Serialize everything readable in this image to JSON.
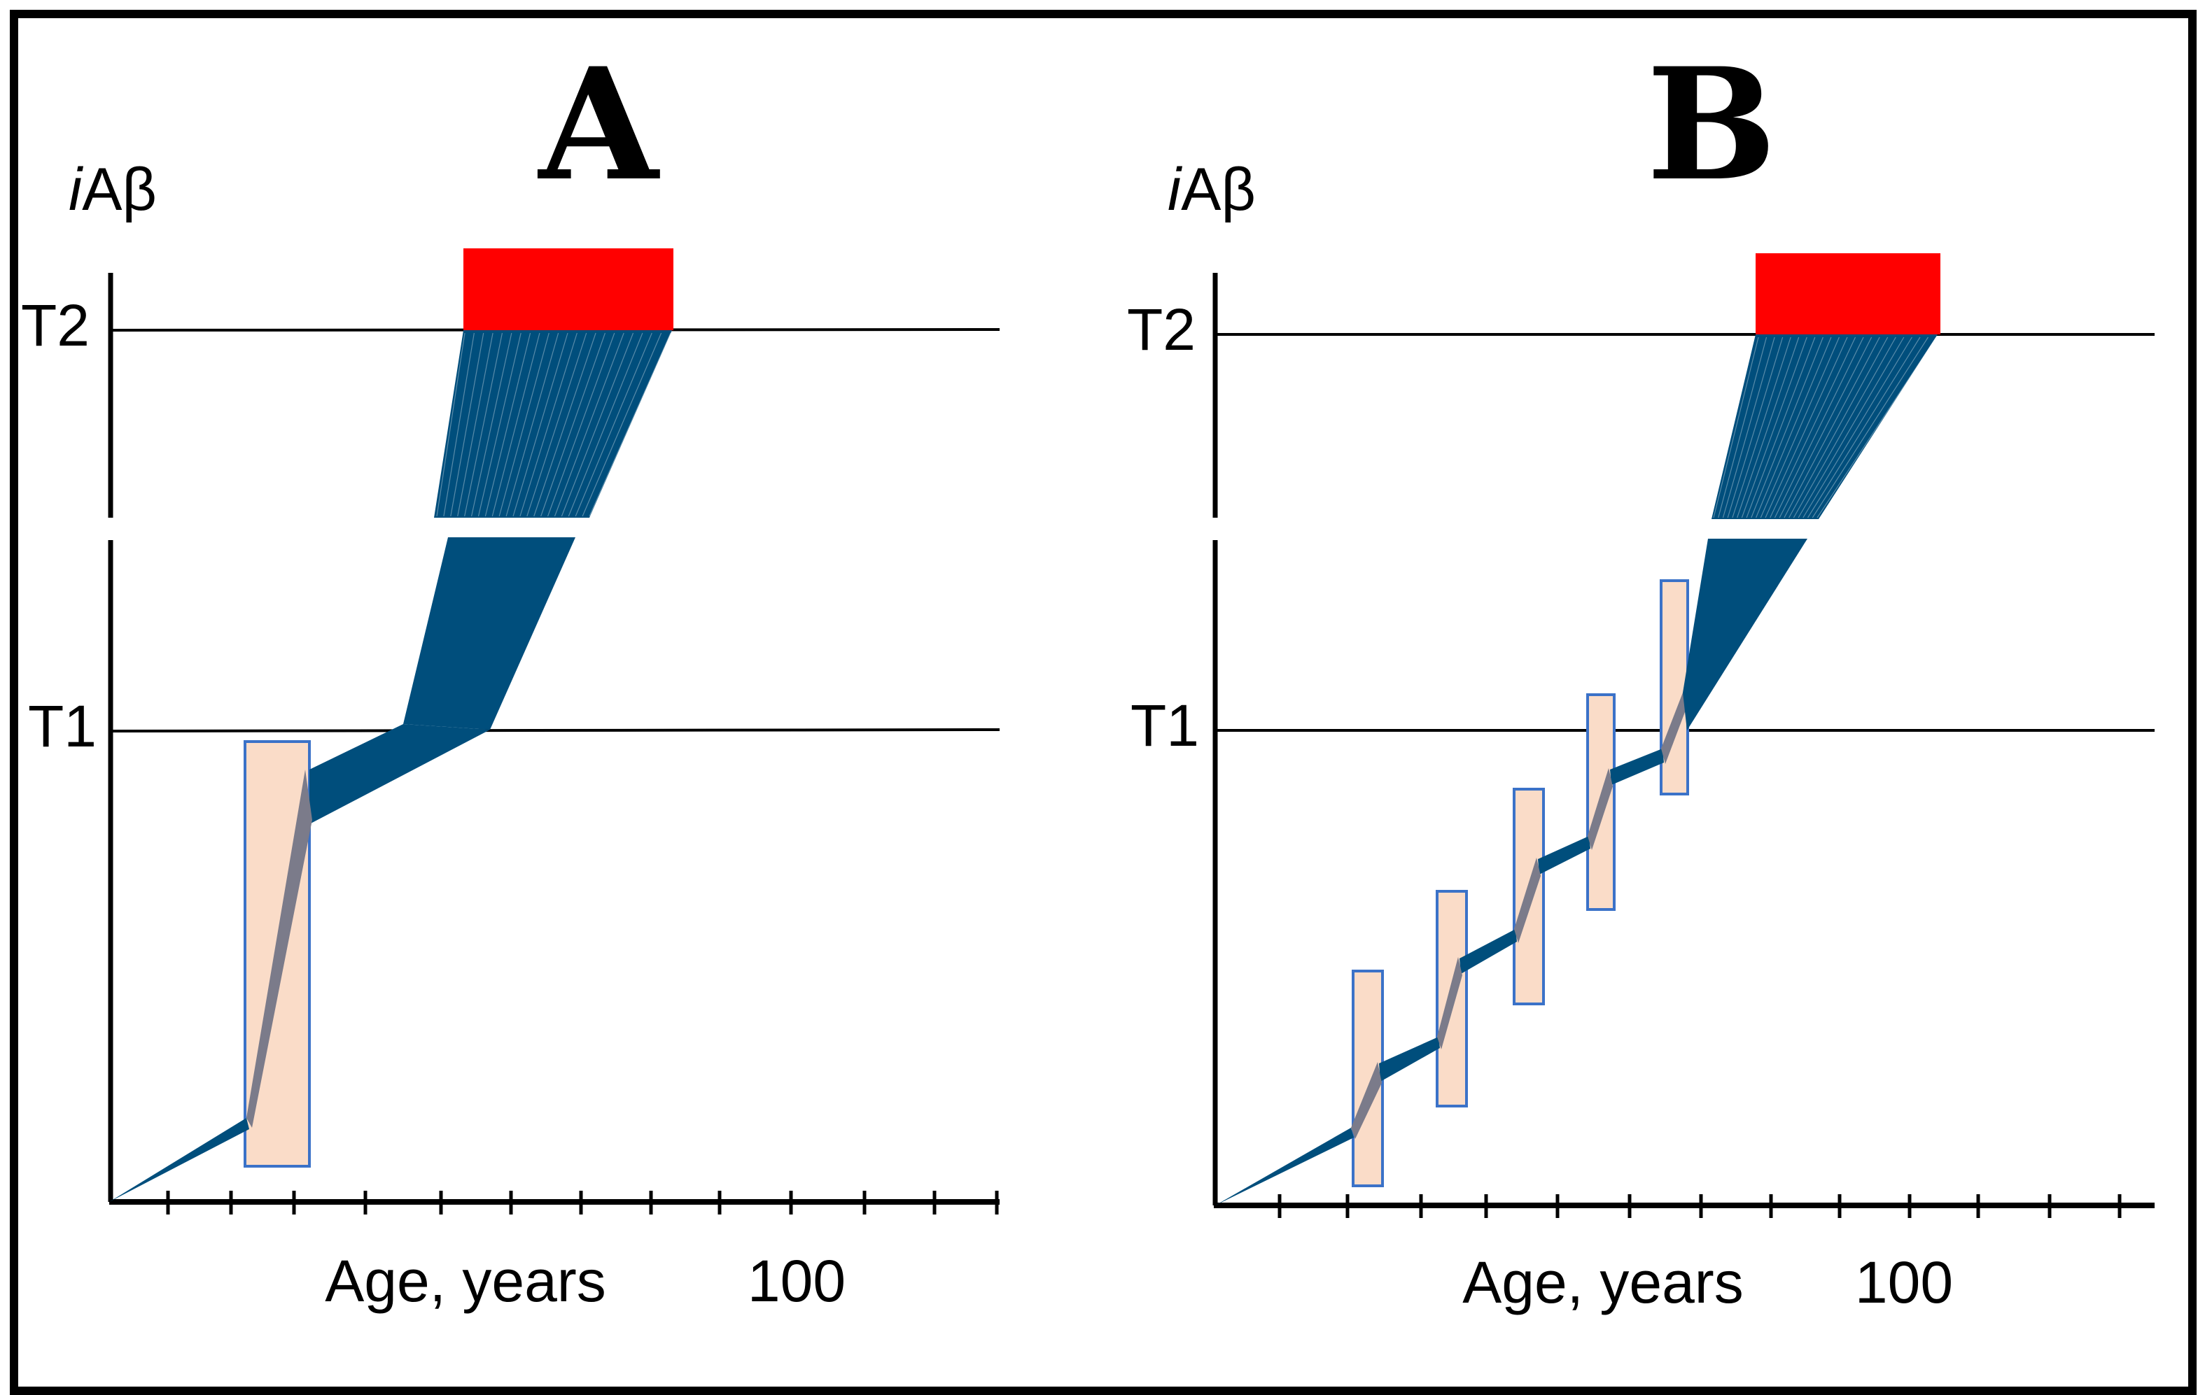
{
  "colors": {
    "trajectory": "#004e7c",
    "threshold_bar": "#ff0000",
    "highlight_fill": "#fadcc8",
    "highlight_border": "#3b72c8",
    "highlight_line": "#7b7b8a",
    "axis": "#000000"
  },
  "panels": [
    {
      "id": "A",
      "title": "A",
      "y_label_italic": "i",
      "y_label_rest": "Aβ",
      "t2_label": "T2",
      "t1_label": "T1",
      "x_label": "Age, years",
      "x_value_label": "100",
      "highlight_box_count": 1
    },
    {
      "id": "B",
      "title": "B",
      "y_label_italic": "i",
      "y_label_rest": "Aβ",
      "t2_label": "T2",
      "t1_label": "T1",
      "x_label": "Age, years",
      "x_value_label": "100",
      "highlight_box_count": 5
    }
  ]
}
